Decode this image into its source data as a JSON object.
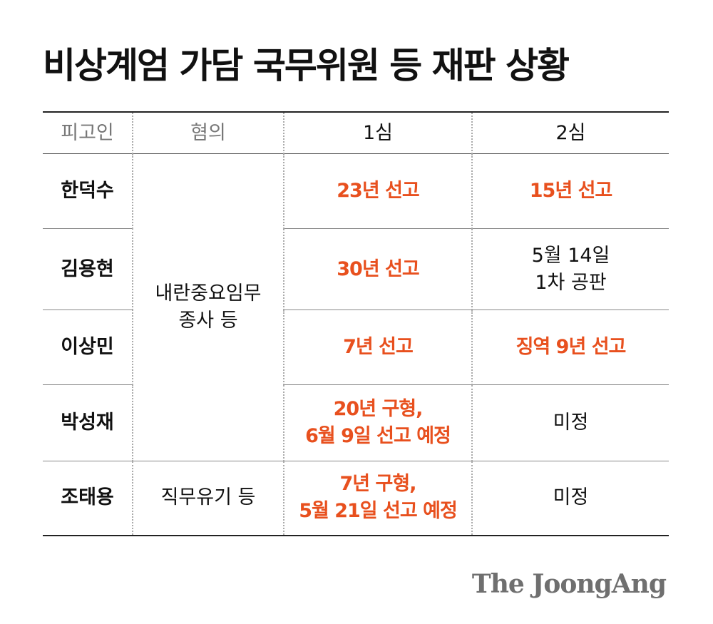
{
  "title": "비상계엄 가담 국무위원 등 재판 상황",
  "table": {
    "headers": [
      "피고인",
      "혐의",
      "1심",
      "2심"
    ],
    "charges": {
      "group1": "내란중요임무\n종사 등",
      "group2": "직무유기 등"
    },
    "rows": [
      {
        "defendant": "한덕수",
        "first": "23년 선고",
        "second": "15년 선고"
      },
      {
        "defendant": "김용현",
        "first": "30년 선고",
        "second": "5월 14일\n1차 공판"
      },
      {
        "defendant": "이상민",
        "first": "7년 선고",
        "second": "징역 9년 선고"
      },
      {
        "defendant": "박성재",
        "first": "20년 구형,\n6월 9일 선고 예정",
        "second": "미정"
      },
      {
        "defendant": "조태용",
        "first": "7년 구형,\n5월 21일 선고 예정",
        "second": "미정"
      }
    ]
  },
  "colors": {
    "accent": "#e8501e",
    "text": "#111111",
    "muted": "#777777",
    "logo": "#6f6f6f"
  },
  "logo": "The JoongAng"
}
